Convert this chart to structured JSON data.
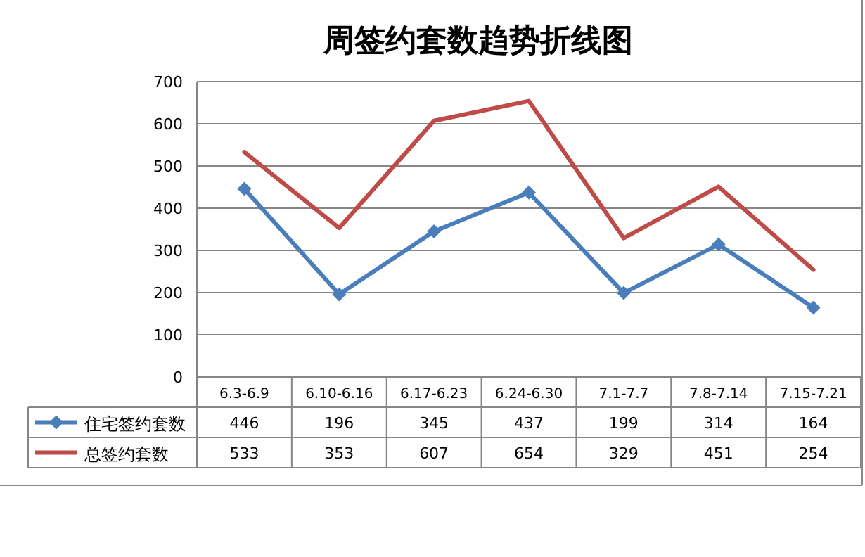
{
  "chart_data": {
    "type": "line",
    "title": "周签约套数趋势折线图",
    "categories": [
      "6.3-6.9",
      "6.10-6.16",
      "6.17-6.23",
      "6.24-6.30",
      "7.1-7.7",
      "7.8-7.14",
      "7.15-7.21"
    ],
    "series": [
      {
        "name": "住宅签约套数",
        "color": "#4a7ebb",
        "marker": "diamond",
        "values": [
          446,
          196,
          345,
          437,
          199,
          314,
          164
        ]
      },
      {
        "name": "总签约套数",
        "color": "#be4b48",
        "marker": "none",
        "values": [
          533,
          353,
          607,
          654,
          329,
          451,
          254
        ]
      }
    ],
    "ylim": [
      0,
      700
    ],
    "yticks": [
      0,
      100,
      200,
      300,
      400,
      500,
      600,
      700
    ],
    "grid": "y",
    "legend": "bottom left",
    "data_labels": true,
    "line_style": "solid"
  }
}
